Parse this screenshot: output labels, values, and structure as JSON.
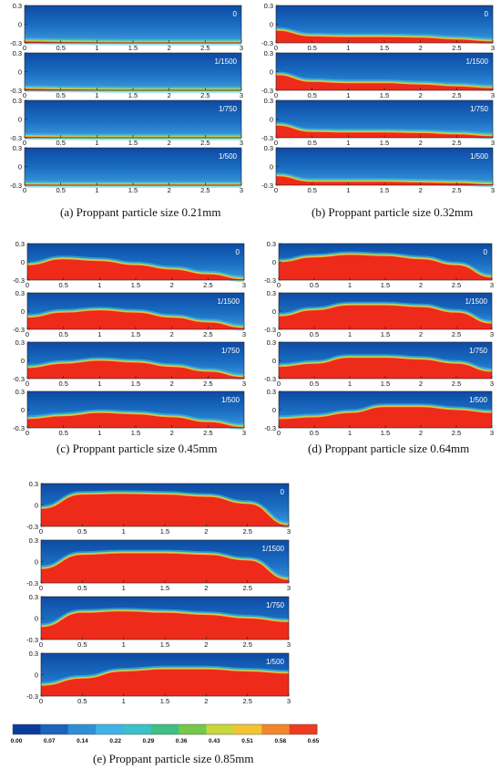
{
  "figure": {
    "axis": {
      "x_ticks": [
        "0",
        "0.5",
        "1",
        "1.5",
        "2",
        "2.5",
        "3"
      ],
      "y_ticks": [
        "0.3",
        "0",
        "-0.3"
      ]
    },
    "colorbar": {
      "ticks": [
        "0.00",
        "0.07",
        "0.14",
        "0.22",
        "0.29",
        "0.36",
        "0.43",
        "0.51",
        "0.58",
        "0.65"
      ]
    }
  },
  "chart_data": [
    {
      "type": "heatmap",
      "caption": "(a) Proppant particle size 0.21mm",
      "xlim": [
        0,
        3
      ],
      "ylim": [
        -0.3,
        0.3
      ],
      "panels": [
        {
          "label": "0",
          "bed_height": [
            -0.27,
            -0.28,
            -0.285,
            -0.29,
            -0.29,
            -0.29,
            -0.29
          ]
        },
        {
          "label": "1/1500",
          "bed_height": [
            -0.27,
            -0.28,
            -0.285,
            -0.29,
            -0.29,
            -0.29,
            -0.29
          ]
        },
        {
          "label": "1/750",
          "bed_height": [
            -0.28,
            -0.285,
            -0.29,
            -0.29,
            -0.29,
            -0.29,
            -0.29
          ]
        },
        {
          "label": "1/500",
          "bed_height": [
            -0.285,
            -0.29,
            -0.29,
            -0.29,
            -0.29,
            -0.29,
            -0.29
          ]
        }
      ]
    },
    {
      "type": "heatmap",
      "caption": "(b) Proppant particle size 0.32mm",
      "xlim": [
        0,
        3
      ],
      "ylim": [
        -0.3,
        0.3
      ],
      "panels": [
        {
          "label": "0",
          "bed_height": [
            -0.1,
            -0.19,
            -0.2,
            -0.2,
            -0.21,
            -0.24,
            -0.27
          ]
        },
        {
          "label": "1/1500",
          "bed_height": [
            -0.05,
            -0.16,
            -0.18,
            -0.18,
            -0.2,
            -0.23,
            -0.26
          ]
        },
        {
          "label": "1/750",
          "bed_height": [
            -0.1,
            -0.2,
            -0.21,
            -0.21,
            -0.22,
            -0.24,
            -0.27
          ]
        },
        {
          "label": "1/500",
          "bed_height": [
            -0.15,
            -0.24,
            -0.24,
            -0.24,
            -0.25,
            -0.26,
            -0.28
          ]
        }
      ]
    },
    {
      "type": "heatmap",
      "caption": "(c) Proppant particle size 0.45mm",
      "xlim": [
        0,
        3
      ],
      "ylim": [
        -0.3,
        0.3
      ],
      "panels": [
        {
          "label": "0",
          "bed_height": [
            -0.05,
            0.05,
            0.02,
            -0.05,
            -0.12,
            -0.2,
            -0.28
          ]
        },
        {
          "label": "1/1500",
          "bed_height": [
            -0.1,
            -0.02,
            0.02,
            -0.02,
            -0.1,
            -0.18,
            -0.27
          ]
        },
        {
          "label": "1/750",
          "bed_height": [
            -0.12,
            -0.05,
            0.0,
            -0.03,
            -0.1,
            -0.18,
            -0.27
          ]
        },
        {
          "label": "1/500",
          "bed_height": [
            -0.15,
            -0.1,
            -0.05,
            -0.07,
            -0.12,
            -0.2,
            -0.28
          ]
        }
      ]
    },
    {
      "type": "heatmap",
      "caption": "(d) Proppant particle size 0.64mm",
      "xlim": [
        0,
        3
      ],
      "ylim": [
        -0.3,
        0.3
      ],
      "panels": [
        {
          "label": "0",
          "bed_height": [
            0.0,
            0.08,
            0.12,
            0.1,
            0.05,
            -0.05,
            -0.25
          ]
        },
        {
          "label": "1/1500",
          "bed_height": [
            -0.08,
            0.02,
            0.1,
            0.1,
            0.07,
            -0.02,
            -0.2
          ]
        },
        {
          "label": "1/750",
          "bed_height": [
            -0.1,
            -0.05,
            0.05,
            0.05,
            0.02,
            -0.05,
            -0.18
          ]
        },
        {
          "label": "1/500",
          "bed_height": [
            -0.15,
            -0.12,
            -0.05,
            0.05,
            0.05,
            0.0,
            -0.05
          ]
        }
      ]
    },
    {
      "type": "heatmap",
      "caption": "(e) Proppant particle size 0.85mm",
      "xlim": [
        0,
        3
      ],
      "ylim": [
        -0.3,
        0.3
      ],
      "panels": [
        {
          "label": "0",
          "bed_height": [
            -0.05,
            0.15,
            0.16,
            0.15,
            0.12,
            0.02,
            -0.28
          ]
        },
        {
          "label": "1/1500",
          "bed_height": [
            -0.1,
            0.1,
            0.12,
            0.12,
            0.1,
            0.02,
            -0.25
          ]
        },
        {
          "label": "1/750",
          "bed_height": [
            -0.12,
            0.08,
            0.1,
            0.08,
            0.05,
            0.0,
            -0.05
          ]
        },
        {
          "label": "1/500",
          "bed_height": [
            -0.15,
            -0.05,
            0.05,
            0.08,
            0.08,
            0.05,
            0.02
          ]
        }
      ]
    }
  ]
}
